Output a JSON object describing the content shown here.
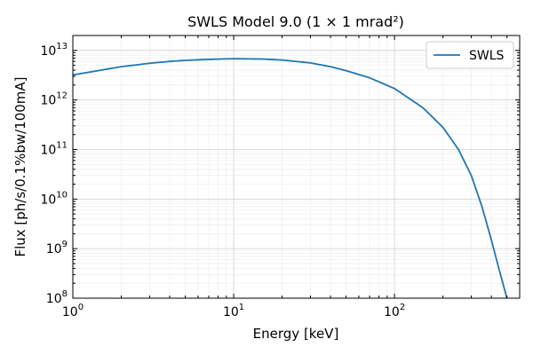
{
  "chart_data": {
    "type": "line",
    "title": "SWLS Model 9.0 (1 × 1 mrad²)",
    "xlabel": "Energy [keV]",
    "ylabel": "Flux [ph/s/0.1%bw/100mA]",
    "x_scale": "log",
    "y_scale": "log",
    "xlim": [
      1,
      600
    ],
    "ylim": [
      100000000.0,
      20000000000000.0
    ],
    "x_ticks": [
      {
        "value": 1,
        "base": "10",
        "exp": "0"
      },
      {
        "value": 10,
        "base": "10",
        "exp": "1"
      },
      {
        "value": 100,
        "base": "10",
        "exp": "2"
      }
    ],
    "y_ticks": [
      {
        "value": 100000000.0,
        "base": "10",
        "exp": "8"
      },
      {
        "value": 1000000000.0,
        "base": "10",
        "exp": "9"
      },
      {
        "value": 10000000000.0,
        "base": "10",
        "exp": "10"
      },
      {
        "value": 100000000000.0,
        "base": "10",
        "exp": "11"
      },
      {
        "value": 1000000000000.0,
        "base": "10",
        "exp": "12"
      },
      {
        "value": 10000000000000.0,
        "base": "10",
        "exp": "13"
      }
    ],
    "grid": true,
    "legend_position": "top-right",
    "series": [
      {
        "name": "SWLS",
        "color": "#1f77b4",
        "x": [
          1,
          1.5,
          2,
          3,
          4,
          5,
          7,
          10,
          15,
          20,
          30,
          40,
          50,
          70,
          100,
          150,
          200,
          250,
          300,
          350,
          400,
          450,
          500
        ],
        "y": [
          3200000000000.0,
          4000000000000.0,
          4700000000000.0,
          5500000000000.0,
          6000000000000.0,
          6300000000000.0,
          6600000000000.0,
          6800000000000.0,
          6700000000000.0,
          6400000000000.0,
          5600000000000.0,
          4700000000000.0,
          3900000000000.0,
          2800000000000.0,
          1700000000000.0,
          700000000000.0,
          280000000000.0,
          100000000000.0,
          30000000000.0,
          7000000000.0,
          1500000000.0,
          350000000.0,
          100000000.0
        ]
      }
    ]
  }
}
